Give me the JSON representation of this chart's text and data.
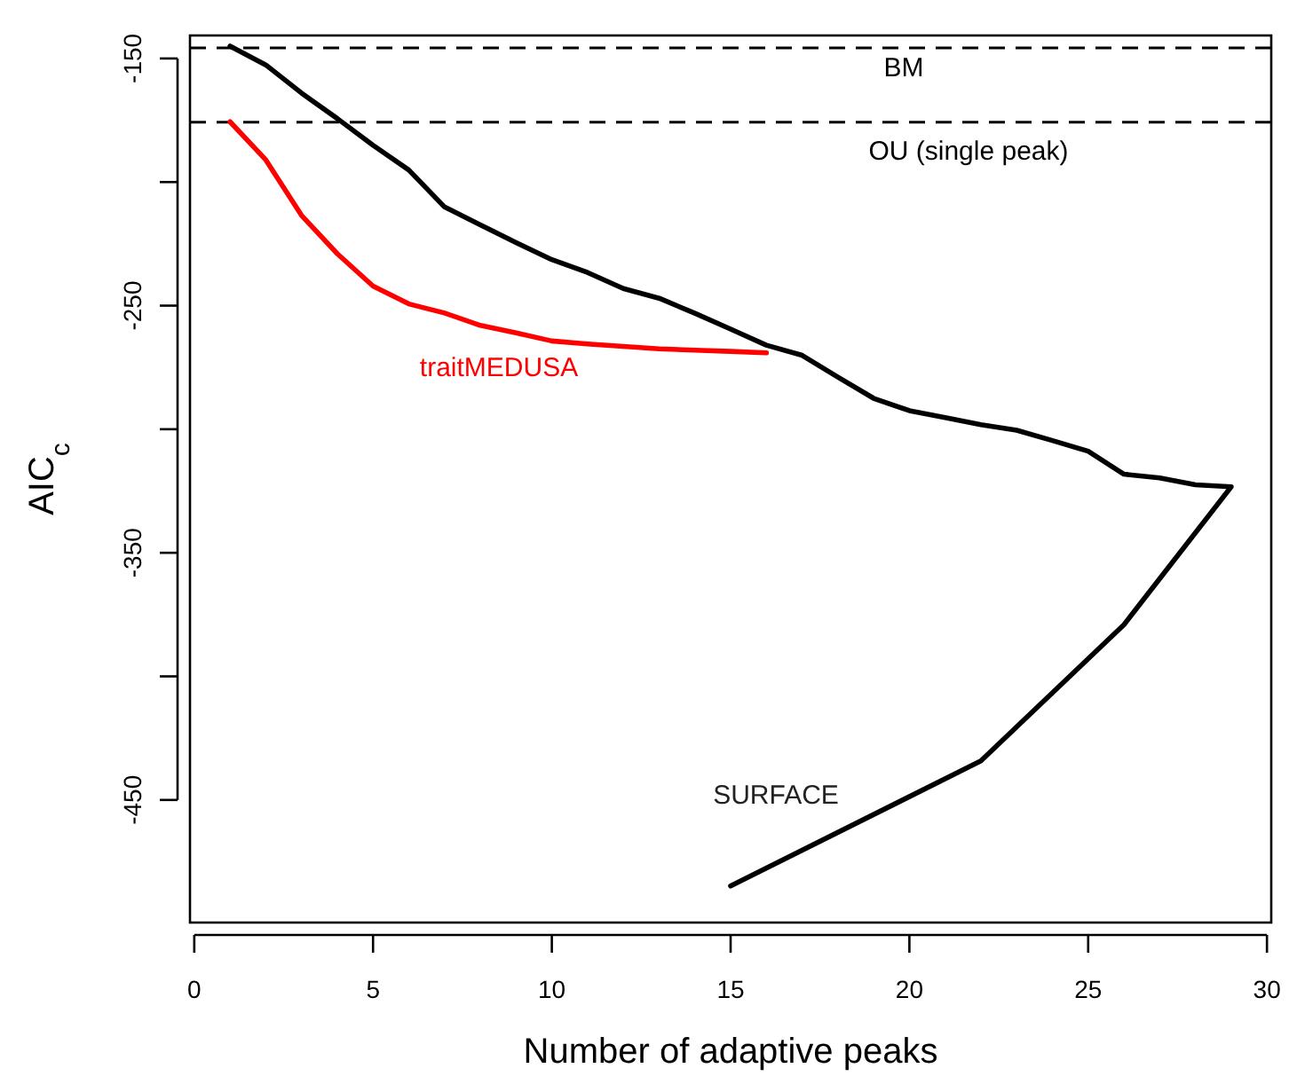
{
  "chart_data": {
    "type": "line",
    "xlabel": "Number of adaptive peaks",
    "ylabel": "AIC$_{c}$",
    "xlim": [
      -0.12,
      30.12
    ],
    "xticks": [
      0,
      5,
      10,
      15,
      20,
      25,
      30
    ],
    "ylim": [
      -499.6,
      -140.7
    ],
    "yticks": [
      -150,
      {
        "value": -200,
        "label": null
      },
      -250,
      {
        "value": -300,
        "label": null
      },
      -350,
      {
        "value": -400,
        "label": null
      },
      -450
    ],
    "grid": false,
    "line_style": "solid",
    "marker": "none",
    "ref_lines": [
      {
        "axis": "y",
        "value": -145.7,
        "label": "BM",
        "color": "#000000",
        "line_style": "dashed"
      },
      {
        "axis": "y",
        "value": -175.8,
        "label": "OU (single peak)",
        "color": "#000000",
        "line_style": "dashed"
      }
    ],
    "series": [
      {
        "name": "traitMEDUSA",
        "color": "#ff0000",
        "x": [
          1,
          2,
          3,
          4,
          5,
          6,
          7,
          8,
          9,
          10,
          11,
          12,
          13,
          14,
          15,
          16
        ],
        "values": [
          -175.6,
          -191,
          -213.5,
          -229,
          -242.1,
          -249.3,
          -253,
          -258,
          -261,
          -264.3,
          -265.5,
          -266.5,
          -267.5,
          -268,
          -268.5,
          -269.1
        ]
      },
      {
        "name": "SURFACE",
        "color": "#000000",
        "x": [
          1,
          2,
          3,
          4,
          5,
          6,
          7,
          8,
          9,
          10,
          11,
          12,
          13,
          14,
          15,
          16,
          17,
          18,
          19,
          20,
          21,
          22,
          23,
          24,
          25,
          26,
          27,
          28,
          29,
          26,
          22,
          15
        ],
        "values": [
          -145,
          -152.6,
          -164,
          -174.3,
          -185.1,
          -195.1,
          -210.1,
          -217.3,
          -224.5,
          -231.4,
          -236.6,
          -243.1,
          -247,
          -253.1,
          -259.5,
          -266,
          -270.1,
          -278.9,
          -287.5,
          -292.5,
          -295.3,
          -298.2,
          -300.4,
          -304.6,
          -308.9,
          -318.2,
          -319.7,
          -322.5,
          -323.3,
          -379.1,
          -434.2,
          -484.8
        ]
      }
    ]
  }
}
